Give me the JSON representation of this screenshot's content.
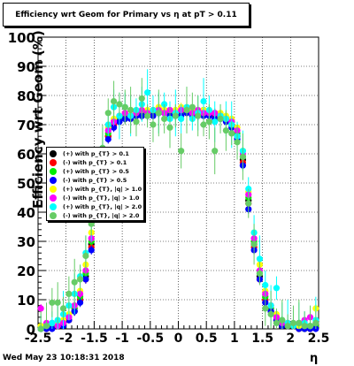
{
  "title": "Efficiency wrt Geom for Primary vs   η at pT > 0.11",
  "footer": "Wed May 23 10:18:31 2018",
  "chart_data": {
    "type": "scatter",
    "title": "Efficiency wrt Geom for Primary vs   η at pT > 0.11",
    "xlabel": "η",
    "ylabel": "Efficiency wrt Geom (%)",
    "xlim": [
      -2.5,
      2.5
    ],
    "ylim": [
      0,
      100
    ],
    "x_ticks": [
      "-2.5",
      "-2",
      "-1.5",
      "-1",
      "-0.5",
      "0",
      "0.5",
      "1",
      "1.5",
      "2",
      "2.5"
    ],
    "y_ticks": [
      "0",
      "10",
      "20",
      "30",
      "40",
      "50",
      "60",
      "70",
      "80",
      "90",
      "100"
    ],
    "grid": true,
    "legend_position": "left",
    "x": [
      -2.45,
      -2.35,
      -2.25,
      -2.15,
      -2.05,
      -1.95,
      -1.85,
      -1.75,
      -1.65,
      -1.55,
      -1.45,
      -1.35,
      -1.25,
      -1.15,
      -1.05,
      -0.95,
      -0.85,
      -0.75,
      -0.65,
      -0.55,
      -0.45,
      -0.35,
      -0.25,
      -0.15,
      -0.05,
      0.05,
      0.15,
      0.25,
      0.35,
      0.45,
      0.55,
      0.65,
      0.75,
      0.85,
      0.95,
      1.05,
      1.15,
      1.25,
      1.35,
      1.45,
      1.55,
      1.65,
      1.75,
      1.85,
      1.95,
      2.05,
      2.15,
      2.25,
      2.35,
      2.45
    ],
    "series": [
      {
        "name": "(+) with p_{T} > 0.1",
        "color": "#000000",
        "values": [
          0,
          0,
          1,
          1,
          1,
          3,
          6,
          10,
          18,
          29,
          44,
          58,
          66,
          70,
          72,
          72,
          73,
          73,
          73,
          74,
          74,
          74,
          75,
          74,
          74,
          74,
          75,
          74,
          74,
          75,
          74,
          73,
          73,
          72,
          70,
          66,
          58,
          44,
          29,
          18,
          10,
          6,
          3,
          1,
          1,
          1,
          0,
          0,
          0,
          1
        ]
      },
      {
        "name": "(-) with p_{T} > 0.1",
        "color": "#ff0000",
        "values": [
          0,
          0,
          1,
          1,
          2,
          3,
          7,
          10,
          17,
          28,
          43,
          57,
          66,
          70,
          72,
          73,
          73,
          73,
          74,
          74,
          74,
          75,
          74,
          74,
          74,
          75,
          74,
          74,
          74,
          74,
          74,
          73,
          73,
          72,
          71,
          66,
          57,
          43,
          28,
          17,
          10,
          7,
          3,
          2,
          1,
          1,
          0,
          0,
          0,
          1
        ]
      },
      {
        "name": "(+) with p_{T} > 0.5",
        "color": "#00ee00",
        "values": [
          0,
          1,
          1,
          1,
          2,
          4,
          7,
          11,
          19,
          30,
          45,
          59,
          67,
          71,
          72,
          73,
          73,
          74,
          74,
          74,
          74,
          75,
          75,
          74,
          74,
          74,
          75,
          74,
          74,
          75,
          74,
          74,
          73,
          72,
          71,
          67,
          59,
          45,
          30,
          19,
          11,
          7,
          4,
          2,
          1,
          1,
          1,
          0,
          1,
          1
        ]
      },
      {
        "name": "(-) with p_{T} > 0.5",
        "color": "#0000ff",
        "values": [
          0,
          0,
          0,
          1,
          1,
          3,
          6,
          9,
          17,
          27,
          41,
          56,
          65,
          69,
          71,
          72,
          72,
          73,
          73,
          73,
          73,
          74,
          74,
          73,
          73,
          73,
          74,
          73,
          73,
          73,
          73,
          72,
          72,
          71,
          69,
          65,
          56,
          41,
          27,
          17,
          9,
          6,
          3,
          1,
          1,
          1,
          0,
          0,
          0,
          0
        ]
      },
      {
        "name": "(+) with p_{T}, |q| > 1.0",
        "color": "#ffff00",
        "values": [
          1,
          1,
          2,
          2,
          3,
          5,
          8,
          13,
          22,
          33,
          47,
          61,
          69,
          72,
          73,
          74,
          75,
          74,
          75,
          75,
          75,
          76,
          75,
          75,
          75,
          76,
          75,
          75,
          75,
          75,
          75,
          74,
          74,
          73,
          72,
          69,
          61,
          47,
          33,
          22,
          13,
          8,
          5,
          3,
          2,
          1,
          1,
          1,
          1,
          7
        ]
      },
      {
        "name": "(-) with p_{T}, |q| > 1.0",
        "color": "#ff00ff",
        "values": [
          7,
          2,
          2,
          1,
          2,
          4,
          8,
          12,
          20,
          31,
          46,
          60,
          68,
          71,
          73,
          74,
          73,
          74,
          75,
          74,
          75,
          75,
          74,
          75,
          74,
          75,
          75,
          74,
          75,
          74,
          74,
          74,
          73,
          72,
          71,
          68,
          60,
          46,
          31,
          20,
          12,
          8,
          4,
          2,
          2,
          1,
          2,
          3,
          4,
          2
        ]
      },
      {
        "name": "(+) with p_{T}, |q| > 2.0",
        "color": "#00ffff",
        "values": [
          0,
          1,
          2,
          3,
          5,
          8,
          12,
          18,
          26,
          38,
          50,
          62,
          70,
          76,
          73,
          76,
          73,
          75,
          77,
          81,
          75,
          74,
          77,
          72,
          74,
          72,
          76,
          72,
          74,
          78,
          75,
          71,
          73,
          72,
          70,
          66,
          61,
          48,
          33,
          24,
          15,
          8,
          14,
          3,
          2,
          1,
          2,
          2,
          1,
          3
        ]
      },
      {
        "name": "(-) with p_{T}, |q| > 2.0",
        "color": "#66cc66",
        "values": [
          0,
          1,
          9,
          9,
          7,
          12,
          16,
          17,
          25,
          36,
          48,
          62,
          74,
          78,
          77,
          76,
          75,
          71,
          79,
          73,
          70,
          74,
          72,
          69,
          73,
          61,
          75,
          76,
          73,
          70,
          71,
          61,
          72,
          68,
          67,
          64,
          59,
          43,
          29,
          19,
          7,
          5,
          2,
          3,
          1,
          2,
          2,
          1,
          1,
          2
        ]
      }
    ]
  }
}
